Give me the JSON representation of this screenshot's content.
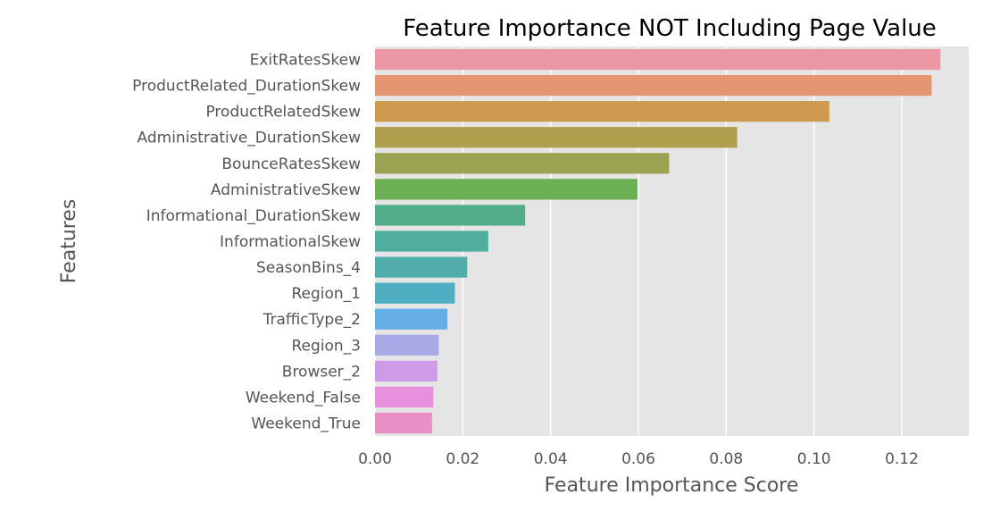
{
  "chart_data": {
    "type": "bar",
    "orientation": "horizontal",
    "title": "Feature Importance NOT Including Page Value",
    "xlabel": "Feature Importance Score",
    "ylabel": "Features",
    "categories": [
      "ExitRatesSkew",
      "ProductRelated_DurationSkew",
      "ProductRelatedSkew",
      "Administrative_DurationSkew",
      "BounceRatesSkew",
      "AdministrativeSkew",
      "Informational_DurationSkew",
      "InformationalSkew",
      "SeasonBins_4",
      "Region_1",
      "TrafficType_2",
      "Region_3",
      "Browser_2",
      "Weekend_False",
      "Weekend_True"
    ],
    "values": [
      0.1288,
      0.1268,
      0.1035,
      0.0825,
      0.067,
      0.0598,
      0.0342,
      0.0258,
      0.021,
      0.0182,
      0.0165,
      0.0145,
      0.0142,
      0.0133,
      0.013
    ],
    "colors": [
      "#ea96a3",
      "#e59572",
      "#cd9a4f",
      "#b09f4c",
      "#9ba353",
      "#6bb053",
      "#52ae88",
      "#4fae9e",
      "#50ada9",
      "#4faec1",
      "#65aee6",
      "#a6a9e6",
      "#cf9be6",
      "#e790de",
      "#e88fc5"
    ],
    "xlim": [
      0,
      0.135
    ],
    "xticks": [
      0.0,
      0.02,
      0.04,
      0.06,
      0.08,
      0.1,
      0.12
    ],
    "xtick_labels": [
      "0.00",
      "0.02",
      "0.04",
      "0.06",
      "0.08",
      "0.10",
      "0.12"
    ],
    "grid": true,
    "background": "#e5e5e5",
    "grid_color": "#ffffff"
  }
}
